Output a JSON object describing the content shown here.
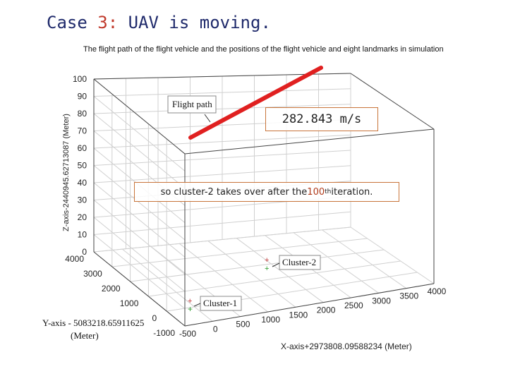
{
  "heading": {
    "case_label": "Case",
    "case_number": "3:",
    "case_text": "UAV is moving."
  },
  "figure": {
    "title": "The flight path of the flight vehicle and the positions of the flight vehicle and eight landmarks in simulation",
    "z_axis_label": "Z-axis-2440945.62713087 (Meter)",
    "y_axis_label_line1": "Y-axis - 5083218.65911625",
    "y_axis_label_line2": "(Meter)",
    "x_axis_label": "X-axis+2973808.09588234 (Meter)",
    "z_ticks": [
      "100",
      "90",
      "80",
      "70",
      "60",
      "50",
      "40",
      "30",
      "20",
      "10",
      "0"
    ],
    "y_ticks": [
      "4000",
      "3000",
      "2000",
      "1000",
      "0",
      "-1000"
    ],
    "x_ticks": [
      "-500",
      "0",
      "500",
      "1000",
      "1500",
      "2000",
      "2500",
      "3000",
      "3500",
      "4000"
    ],
    "labels": {
      "flight_path": "Flight path",
      "cluster1": "Cluster-1",
      "cluster2": "Cluster-2"
    },
    "colors": {
      "flight_path": "#e02020",
      "cluster1": "#2a9a2a",
      "cluster2": "#c03030"
    }
  },
  "callouts": {
    "speed": "282.843 m/s",
    "takeover_pre": "so cluster-2 takes over after the ",
    "takeover_num": "100",
    "takeover_sup": "th",
    "takeover_post": " iteration."
  }
}
